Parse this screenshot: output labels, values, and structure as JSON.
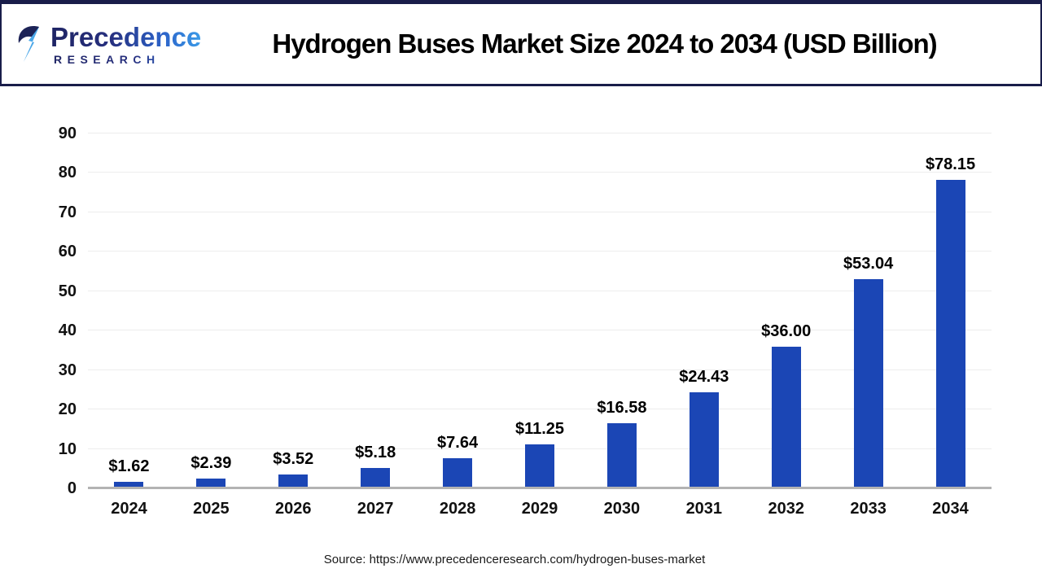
{
  "header": {
    "logo": {
      "line1": "Precedence",
      "line2": "RESEARCH",
      "icon": "precedence-logo-icon"
    },
    "title": "Hydrogen Buses Market Size 2024 to 2034 (USD Billion)"
  },
  "chart_data": {
    "type": "bar",
    "title": "Hydrogen Buses Market Size 2024 to 2034 (USD Billion)",
    "categories": [
      "2024",
      "2025",
      "2026",
      "2027",
      "2028",
      "2029",
      "2030",
      "2031",
      "2032",
      "2033",
      "2034"
    ],
    "values": [
      1.62,
      2.39,
      3.52,
      5.18,
      7.64,
      11.25,
      16.58,
      24.43,
      36.0,
      53.04,
      78.15
    ],
    "value_labels": [
      "$1.62",
      "$2.39",
      "$3.52",
      "$5.18",
      "$7.64",
      "$11.25",
      "$16.58",
      "$24.43",
      "$36.00",
      "$53.04",
      "$78.15"
    ],
    "xlabel": "",
    "ylabel": "",
    "ylim": [
      0,
      90
    ],
    "yticks": [
      0,
      10,
      20,
      30,
      40,
      50,
      60,
      70,
      80,
      90
    ],
    "grid": true,
    "legend": "none",
    "bar_color": "#1b46b5"
  },
  "footer": {
    "source": "Source: https://www.precedenceresearch.com/hydrogen-buses-market"
  },
  "colors": {
    "accent_navy": "#191d4a",
    "bar_blue": "#1b46b5",
    "gridline": "#ededed",
    "baseline_gray": "#b3b3b3",
    "logo_navy": "#1e2464",
    "logo_blue": "#3b9be8"
  }
}
